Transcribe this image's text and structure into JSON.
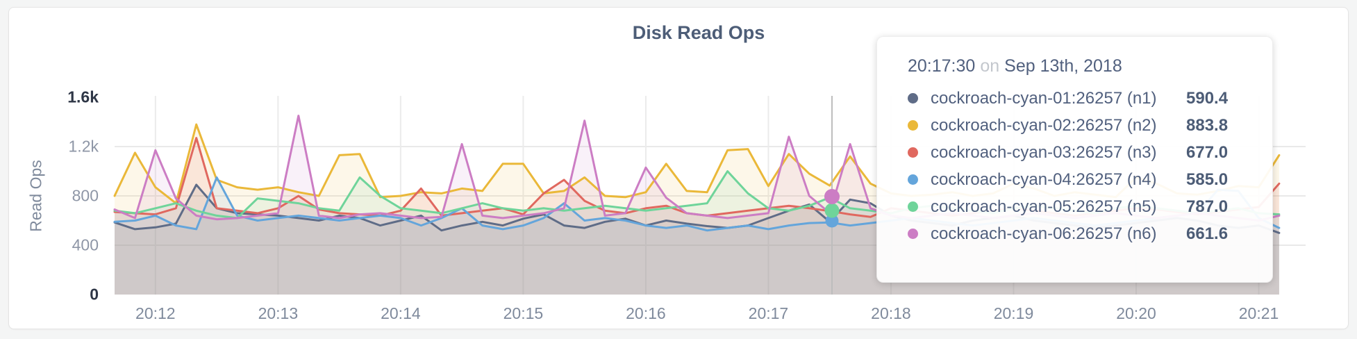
{
  "chart_data": {
    "type": "line",
    "title": "Disk Read Ops",
    "ylabel": "Read Ops",
    "ylim": [
      0,
      1600
    ],
    "grid": true,
    "x_start_time": "20:11:40",
    "x_interval_seconds": 10,
    "x_ticks": [
      "20:12",
      "20:13",
      "20:14",
      "20:15",
      "20:16",
      "20:17",
      "20:18",
      "20:19",
      "20:20",
      "20:21"
    ],
    "y_ticks": [
      {
        "label": "1.6k",
        "value": 1600,
        "emphasized": true
      },
      {
        "label": "1.2k",
        "value": 1200,
        "emphasized": false
      },
      {
        "label": "800",
        "value": 800,
        "emphasized": false
      },
      {
        "label": "400",
        "value": 400,
        "emphasized": false
      },
      {
        "label": "0",
        "value": 0,
        "emphasized": true
      }
    ],
    "series": [
      {
        "name": "cockroach-cyan-01:26257 (n1)",
        "node": "n1",
        "color": "#5f6c87",
        "values": [
          585,
          530,
          545,
          575,
          890,
          700,
          660,
          650,
          640,
          620,
          600,
          640,
          620,
          560,
          600,
          640,
          520,
          560,
          590,
          560,
          615,
          650,
          560,
          540,
          590,
          615,
          560,
          600,
          575,
          555,
          540,
          560,
          620,
          680,
          730,
          590.4,
          770,
          740,
          640,
          600,
          580,
          560,
          600,
          620,
          640,
          600,
          580,
          560,
          540,
          560,
          580,
          600,
          620,
          600,
          560,
          540,
          560,
          500
        ]
      },
      {
        "name": "cockroach-cyan-02:26257 (n2)",
        "node": "n2",
        "color": "#eab839",
        "values": [
          800,
          1150,
          870,
          740,
          1380,
          930,
          870,
          850,
          870,
          830,
          800,
          1130,
          1140,
          790,
          800,
          830,
          820,
          860,
          840,
          1060,
          1060,
          820,
          840,
          950,
          800,
          790,
          830,
          1060,
          840,
          830,
          1170,
          1180,
          880,
          1140,
          980,
          883.8,
          1120,
          900,
          820,
          800,
          810,
          830,
          800,
          820,
          900,
          860,
          800,
          830,
          810,
          790,
          950,
          900,
          820,
          810,
          840,
          880,
          870,
          1130
        ]
      },
      {
        "name": "cockroach-cyan-03:26257 (n3)",
        "node": "n3",
        "color": "#e0685f",
        "values": [
          670,
          660,
          650,
          700,
          1270,
          700,
          680,
          660,
          700,
          800,
          690,
          660,
          650,
          640,
          680,
          860,
          640,
          660,
          680,
          700,
          650,
          820,
          930,
          760,
          680,
          660,
          700,
          720,
          660,
          640,
          660,
          680,
          700,
          720,
          700,
          677,
          650,
          630,
          700,
          680,
          660,
          640,
          660,
          680,
          700,
          680,
          660,
          640,
          660,
          680,
          700,
          690,
          670,
          650,
          670,
          690,
          710,
          900
        ]
      },
      {
        "name": "cockroach-cyan-04:26257 (n4)",
        "node": "n4",
        "color": "#64a5db",
        "values": [
          590,
          600,
          640,
          560,
          530,
          950,
          640,
          600,
          620,
          640,
          620,
          600,
          620,
          640,
          620,
          560,
          620,
          700,
          560,
          530,
          560,
          620,
          740,
          600,
          620,
          600,
          560,
          540,
          560,
          520,
          540,
          560,
          530,
          560,
          580,
          585,
          560,
          580,
          600,
          620,
          600,
          580,
          560,
          580,
          600,
          620,
          600,
          580,
          560,
          580,
          600,
          620,
          640,
          660,
          850,
          840,
          620,
          540
        ]
      },
      {
        "name": "cockroach-cyan-05:26257 (n5)",
        "node": "n5",
        "color": "#6fd49a",
        "values": [
          680,
          660,
          700,
          740,
          680,
          640,
          620,
          780,
          760,
          740,
          700,
          680,
          950,
          800,
          700,
          680,
          660,
          700,
          740,
          700,
          680,
          700,
          680,
          700,
          720,
          700,
          680,
          700,
          720,
          740,
          1000,
          820,
          700,
          680,
          720,
          787,
          700,
          680,
          660,
          700,
          720,
          700,
          680,
          660,
          700,
          720,
          700,
          680,
          660,
          700,
          720,
          700,
          680,
          660,
          680,
          700,
          660,
          650
        ]
      },
      {
        "name": "cockroach-cyan-06:26257 (n6)",
        "node": "n6",
        "color": "#cc7dc4",
        "values": [
          690,
          620,
          1170,
          780,
          640,
          610,
          620,
          640,
          660,
          1450,
          640,
          620,
          650,
          660,
          640,
          620,
          630,
          1220,
          640,
          620,
          640,
          660,
          700,
          1410,
          640,
          660,
          1030,
          785,
          660,
          640,
          620,
          640,
          660,
          1280,
          800,
          661.6,
          1220,
          700,
          640,
          620,
          640,
          660,
          640,
          620,
          640,
          660,
          640,
          620,
          640,
          660,
          640,
          620,
          640,
          660,
          640,
          620,
          600,
          640
        ]
      }
    ]
  },
  "hover": {
    "time": "20:17:30",
    "guideline_color": "#bdbdbd",
    "dot_series": [
      "n4",
      "n5",
      "n6"
    ]
  },
  "tooltip": {
    "time": "20:17:30",
    "connector": "on",
    "date": "Sep 13th, 2018",
    "rows": [
      {
        "label": "cockroach-cyan-01:26257 (n1)",
        "value": "590.4",
        "color": "#5f6c87"
      },
      {
        "label": "cockroach-cyan-02:26257 (n2)",
        "value": "883.8",
        "color": "#eab839"
      },
      {
        "label": "cockroach-cyan-03:26257 (n3)",
        "value": "677.0",
        "color": "#e0685f"
      },
      {
        "label": "cockroach-cyan-04:26257 (n4)",
        "value": "585.0",
        "color": "#64a5db"
      },
      {
        "label": "cockroach-cyan-05:26257 (n5)",
        "value": "787.0",
        "color": "#6fd49a"
      },
      {
        "label": "cockroach-cyan-06:26257 (n6)",
        "value": "661.6",
        "color": "#cc7dc4"
      }
    ]
  }
}
